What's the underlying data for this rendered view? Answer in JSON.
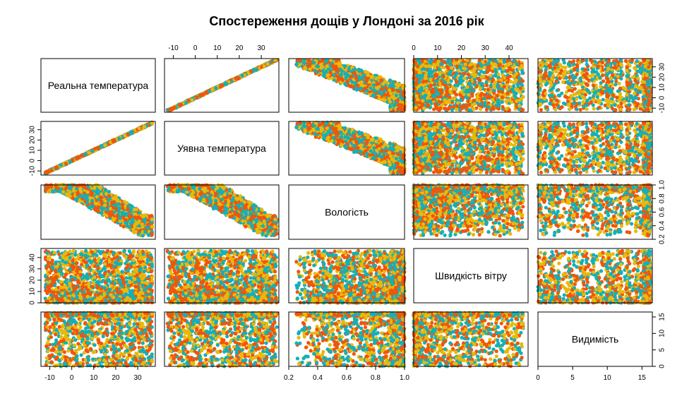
{
  "chart_data": {
    "type": "scatter",
    "title": "Спостереження дощів у Лондоні за 2016 рік",
    "variables": [
      {
        "name": "Реальна температура",
        "range": [
          -14,
          38
        ],
        "ticks": [
          -10,
          0,
          10,
          20,
          30
        ],
        "tick_labels": [
          "-10",
          "0",
          "10",
          "20",
          "30"
        ]
      },
      {
        "name": "Уявна температура",
        "range": [
          -14,
          38
        ],
        "ticks": [
          -10,
          0,
          10,
          20,
          30
        ],
        "tick_labels": [
          "-10",
          "0",
          "10",
          "20",
          "30"
        ]
      },
      {
        "name": "Вологість",
        "range": [
          0.2,
          1.0
        ],
        "ticks": [
          0.2,
          0.4,
          0.6,
          0.8,
          1.0
        ],
        "tick_labels": [
          "0.2",
          "0.4",
          "0.6",
          "0.8",
          "1.0"
        ]
      },
      {
        "name": "Швидкість вітру",
        "range": [
          0,
          48
        ],
        "ticks": [
          0,
          10,
          20,
          30,
          40
        ],
        "tick_labels": [
          "0",
          "10",
          "20",
          "30",
          "40"
        ]
      },
      {
        "name": "Видимість",
        "range": [
          0,
          16.5
        ],
        "ticks": [
          0,
          5,
          10,
          15
        ],
        "tick_labels": [
          "0",
          "5",
          "10",
          "15"
        ]
      }
    ],
    "series_colors": [
      "#F2550A",
      "#13B0B8",
      "#E8B90C"
    ],
    "grid": false,
    "legend": "none"
  }
}
